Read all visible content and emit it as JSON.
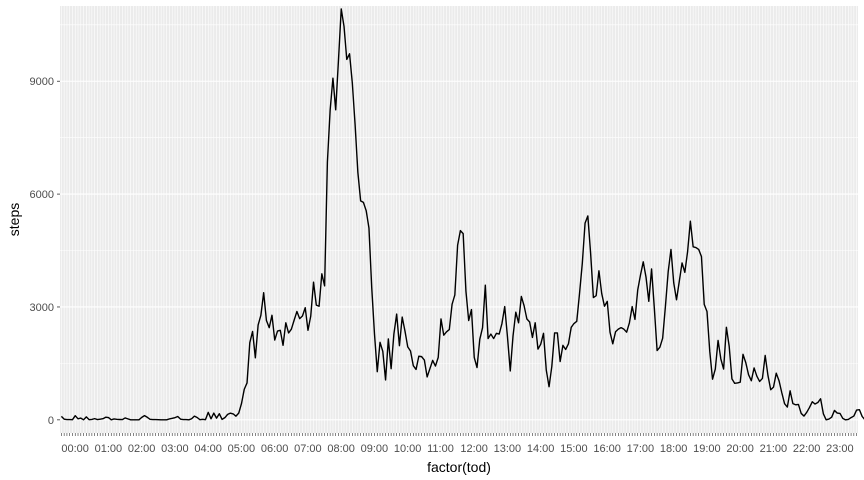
{
  "chart_data": {
    "type": "line",
    "title": "",
    "xlabel": "factor(tod)",
    "ylabel": "steps",
    "ylim": [
      -350,
      11000
    ],
    "yticks": [
      0,
      3000,
      6000,
      9000
    ],
    "ytick_labels": [
      "0",
      "3000",
      "6000",
      "9000"
    ],
    "x_category_count": 288,
    "x_step_minutes": 5,
    "xtick_labels": [
      "00:00",
      "01:00",
      "02:00",
      "03:00",
      "04:00",
      "05:00",
      "06:00",
      "07:00",
      "08:00",
      "09:00",
      "10:00",
      "11:00",
      "12:00",
      "13:00",
      "14:00",
      "15:00",
      "16:00",
      "17:00",
      "18:00",
      "19:00",
      "20:00",
      "21:00",
      "22:00",
      "23:00"
    ],
    "grid": true,
    "legend": "none",
    "colors": {
      "panel": "#ebebeb",
      "grid": "#ffffff",
      "line": "#000000",
      "tick_text": "#4d4d4d",
      "tick_mark": "#333333"
    },
    "series": [
      {
        "values": [
          91,
          18,
          7,
          8,
          4,
          110,
          28,
          46,
          0,
          78,
          4,
          11,
          32,
          7,
          18,
          30,
          70,
          60,
          0,
          23,
          14,
          9,
          6,
          50,
          25,
          0,
          0,
          0,
          0,
          65,
          112,
          68,
          15,
          8,
          8,
          5,
          0,
          0,
          0,
          25,
          40,
          58,
          88,
          18,
          8,
          8,
          0,
          28,
          98,
          62,
          5,
          15,
          4,
          198,
          28,
          178,
          45,
          162,
          12,
          58,
          145,
          178,
          158,
          98,
          178,
          432,
          812,
          980,
          2050,
          2350,
          1650,
          2520,
          2780,
          3380,
          2640,
          2450,
          2780,
          2120,
          2360,
          2380,
          1980,
          2580,
          2310,
          2410,
          2650,
          2880,
          2690,
          2760,
          2980,
          2380,
          2760,
          3660,
          3050,
          3020,
          3880,
          3560,
          6850,
          8240,
          9080,
          8240,
          9560,
          10920,
          10460,
          9580,
          9730,
          8950,
          7850,
          6580,
          5820,
          5780,
          5560,
          5100,
          3520,
          2280,
          1280,
          2060,
          1820,
          1060,
          2150,
          1360,
          2280,
          2810,
          1970,
          2730,
          2360,
          1940,
          1830,
          1440,
          1340,
          1690,
          1680,
          1590,
          1140,
          1360,
          1580,
          1430,
          1660,
          2680,
          2250,
          2340,
          2400,
          3070,
          3320,
          4640,
          5030,
          4950,
          3420,
          2640,
          2930,
          1660,
          1390,
          2140,
          2450,
          3580,
          2160,
          2280,
          2160,
          2300,
          2280,
          2560,
          3010,
          2200,
          1300,
          2230,
          2860,
          2580,
          3280,
          3030,
          2680,
          2600,
          2190,
          2580,
          1880,
          2010,
          2300,
          1320,
          880,
          1420,
          2310,
          2310,
          1550,
          1980,
          1870,
          2020,
          2460,
          2560,
          2620,
          3360,
          4160,
          5230,
          5420,
          4430,
          3250,
          3300,
          3960,
          3360,
          3020,
          3150,
          2330,
          2020,
          2340,
          2410,
          2450,
          2410,
          2330,
          2580,
          3010,
          2670,
          3450,
          3850,
          4200,
          3790,
          3150,
          4010,
          2960,
          1840,
          1930,
          2170,
          3020,
          3940,
          4530,
          3640,
          3190,
          3680,
          4170,
          3920,
          4470,
          5280,
          4600,
          4580,
          4530,
          4340,
          3070,
          2880,
          1820,
          1080,
          1350,
          2110,
          1620,
          1350,
          2460,
          1960,
          1090,
          970,
          980,
          1000,
          1740,
          1520,
          1200,
          1040,
          1380,
          1160,
          1020,
          1100,
          1710,
          1180,
          800,
          870,
          1240,
          1040,
          720,
          430,
          340,
          770,
          430,
          400,
          410,
          170,
          100,
          200,
          330,
          480,
          420,
          460,
          560,
          160,
          0,
          20,
          70,
          250,
          180,
          170,
          40,
          0,
          10,
          60,
          100,
          260,
          270,
          90,
          0,
          50
        ]
      }
    ]
  }
}
